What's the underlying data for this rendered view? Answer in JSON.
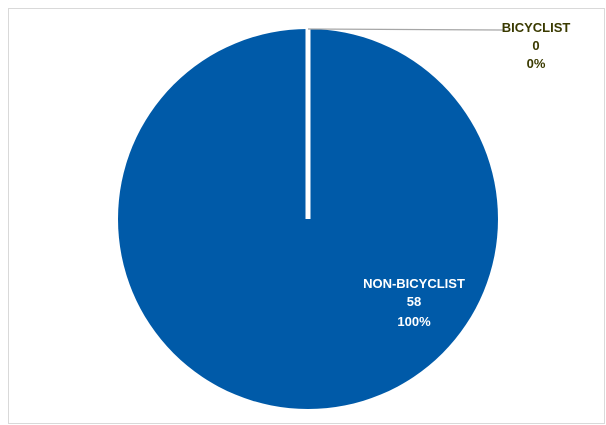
{
  "chart_data": {
    "type": "pie",
    "title": "",
    "slices": [
      {
        "label": "BICYCLIST",
        "value": 0,
        "percent": "0%",
        "color": "#1f4e79",
        "label_color": "#3a3a00"
      },
      {
        "label": "NON-BICYCLIST",
        "value": 58,
        "percent": "100%",
        "color": "#005aa8",
        "label_color": "#ffffff"
      }
    ],
    "legend": "none",
    "separator_color": "#ffffff",
    "leader_line_color": "#a6a6a6"
  }
}
